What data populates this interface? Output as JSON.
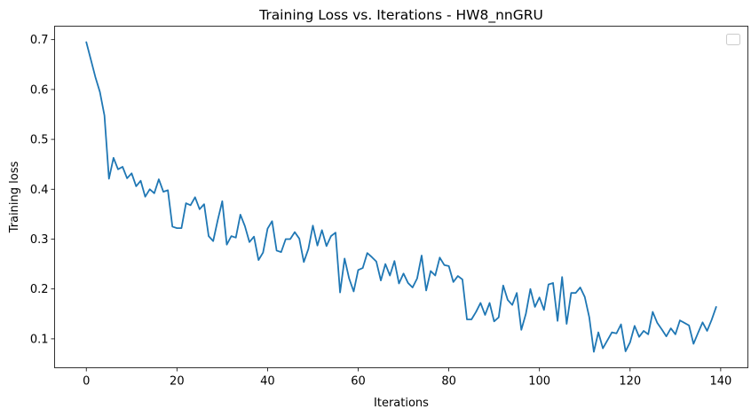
{
  "chart_data": {
    "type": "line",
    "title": "Training Loss vs. Iterations - HW8_nnGRU",
    "xlabel": "Iterations",
    "ylabel": "Training loss",
    "xlim": [
      -7,
      146
    ],
    "ylim": [
      0.042,
      0.727
    ],
    "xticks": [
      0,
      20,
      40,
      60,
      80,
      100,
      120,
      140
    ],
    "yticks": [
      0.1,
      0.2,
      0.3,
      0.4,
      0.5,
      0.6,
      0.7
    ],
    "xtick_labels": [
      "0",
      "20",
      "40",
      "60",
      "80",
      "100",
      "120",
      "140"
    ],
    "ytick_labels": [
      "0.1",
      "0.2",
      "0.3",
      "0.4",
      "0.5",
      "0.6",
      "0.7"
    ],
    "legend": {
      "location": "top-right",
      "entries": []
    },
    "grid": false,
    "series": [
      {
        "name": "",
        "color": "#1f77b4",
        "x_start": 0,
        "x_step": 1,
        "values": [
          0.695,
          0.66,
          0.625,
          0.595,
          0.548,
          0.421,
          0.463,
          0.44,
          0.445,
          0.422,
          0.432,
          0.406,
          0.417,
          0.385,
          0.4,
          0.392,
          0.42,
          0.395,
          0.398,
          0.325,
          0.322,
          0.322,
          0.372,
          0.368,
          0.384,
          0.36,
          0.37,
          0.306,
          0.296,
          0.338,
          0.376,
          0.289,
          0.306,
          0.303,
          0.349,
          0.326,
          0.294,
          0.305,
          0.258,
          0.273,
          0.321,
          0.336,
          0.277,
          0.274,
          0.3,
          0.3,
          0.314,
          0.301,
          0.254,
          0.28,
          0.327,
          0.287,
          0.318,
          0.286,
          0.306,
          0.313,
          0.193,
          0.261,
          0.221,
          0.195,
          0.238,
          0.242,
          0.272,
          0.264,
          0.255,
          0.217,
          0.25,
          0.227,
          0.256,
          0.211,
          0.231,
          0.212,
          0.203,
          0.221,
          0.267,
          0.197,
          0.236,
          0.227,
          0.263,
          0.248,
          0.246,
          0.214,
          0.226,
          0.219,
          0.139,
          0.139,
          0.154,
          0.172,
          0.148,
          0.172,
          0.135,
          0.143,
          0.207,
          0.178,
          0.168,
          0.192,
          0.118,
          0.15,
          0.2,
          0.164,
          0.183,
          0.158,
          0.209,
          0.212,
          0.136,
          0.224,
          0.13,
          0.192,
          0.192,
          0.203,
          0.184,
          0.143,
          0.074,
          0.113,
          0.081,
          0.097,
          0.113,
          0.111,
          0.129,
          0.075,
          0.093,
          0.126,
          0.104,
          0.116,
          0.109,
          0.154,
          0.132,
          0.119,
          0.105,
          0.121,
          0.109,
          0.137,
          0.132,
          0.127,
          0.09,
          0.112,
          0.133,
          0.116,
          0.138,
          0.164
        ]
      }
    ]
  }
}
